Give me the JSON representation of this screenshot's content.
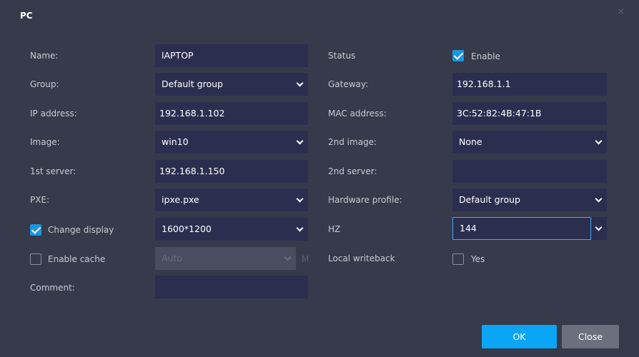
{
  "dialog": {
    "title": "PC",
    "close": "×"
  },
  "left": {
    "name": {
      "label": "Name:",
      "value": "lAPTOP"
    },
    "group": {
      "label": "Group:",
      "value": "Default group"
    },
    "ip": {
      "label": "IP address:",
      "value": "192.168.1.102"
    },
    "image": {
      "label": "Image:",
      "value": "win10"
    },
    "server1": {
      "label": "1st server:",
      "value": "192.168.1.150"
    },
    "pxe": {
      "label": "PXE:",
      "value": "ipxe.pxe"
    },
    "display": {
      "label": "Change display",
      "checked": true,
      "value": "1600*1200"
    },
    "cache": {
      "label": "Enable cache",
      "checked": false,
      "value": "Auto",
      "unit": "M"
    },
    "comment": {
      "label": "Comment:",
      "value": ""
    }
  },
  "right": {
    "status": {
      "label": "Status",
      "checked": true,
      "option": "Enable"
    },
    "gateway": {
      "label": "Gateway:",
      "value": "192.168.1.1"
    },
    "mac": {
      "label": "MAC address:",
      "value": "3C:52:82:4B:47:1B"
    },
    "image2": {
      "label": "2nd image:",
      "value": "None"
    },
    "server2": {
      "label": "2nd server:",
      "value": ""
    },
    "hw": {
      "label": "Hardware profile:",
      "value": "Default group"
    },
    "hz": {
      "label": "HZ",
      "value": "144"
    },
    "writeback": {
      "label": "Local writeback",
      "checked": false,
      "option": "Yes"
    }
  },
  "buttons": {
    "ok": "OK",
    "close": "Close"
  },
  "colors": {
    "accent": "#1a95e0",
    "field": "#2c2e50",
    "background": "#363a4a"
  }
}
